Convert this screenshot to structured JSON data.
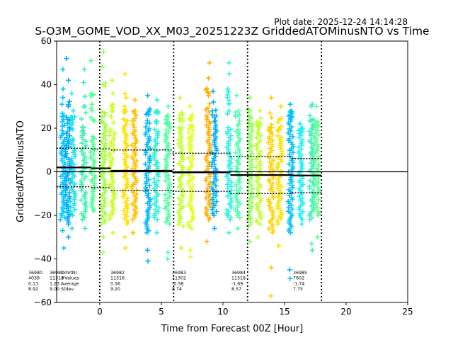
{
  "chart_data": {
    "type": "scatter",
    "plot_date": "Plot date: 2025-12-24 14:14:28",
    "title": "S-O3M_GOME_VOD_XX_M03_20251223Z GriddedATOMinusNTO vs Time",
    "xlabel": "Time from Forecast 00Z [Hour]",
    "ylabel": "GriddedATOMinusNTO",
    "xlim": [
      -3.5,
      25
    ],
    "ylim": [
      -60,
      60
    ],
    "xticks": [
      0,
      5,
      10,
      15,
      20,
      25
    ],
    "yticks": [
      -60,
      -40,
      -20,
      0,
      20,
      40,
      60
    ],
    "zero_line": 0,
    "forecast_boundaries": [
      0,
      6,
      12,
      18
    ],
    "orbit_stats_header": [
      "OrbitNr",
      "#Values",
      "Average",
      "Stdev"
    ],
    "orbits": [
      {
        "orbit": "36980",
        "values": "4039",
        "average": "0.13",
        "stdev": "8.92",
        "t_start": -3.5,
        "t_end": -0.7,
        "mean": 2.0,
        "upper": 10.8,
        "lower": -6.9
      },
      {
        "orbit": "36981",
        "values": "11311",
        "average": "1.23",
        "stdev": "9.00",
        "t_start": -0.7,
        "t_end": 0.9,
        "mean": 1.6,
        "upper": 10.5,
        "lower": -7.3
      },
      {
        "orbit": "36982",
        "values": "11316",
        "average": "0.56",
        "stdev": "9.20",
        "t_start": 0.9,
        "t_end": 5.9,
        "mean": 0.5,
        "upper": 10.0,
        "lower": -8.5
      },
      {
        "orbit": "36983",
        "values": "11302",
        "average": "-0.58",
        "stdev": "8.74",
        "t_start": 5.9,
        "t_end": 10.6,
        "mean": -0.3,
        "upper": 8.5,
        "lower": -9.0
      },
      {
        "orbit": "36984",
        "values": "11318",
        "average": "-1.69",
        "stdev": "8.57",
        "t_start": 10.6,
        "t_end": 15.6,
        "mean": -1.5,
        "upper": 7.0,
        "lower": -10.0
      },
      {
        "orbit": "36985",
        "values": "7602",
        "average": "-1.74",
        "stdev": "7.75",
        "t_start": 15.6,
        "t_end": 18.0,
        "mean": -1.7,
        "upper": 6.1,
        "lower": -9.6
      }
    ],
    "stripes": [
      {
        "x": -3.0,
        "ymin": -22,
        "ymax": 18,
        "outliers": [
          47,
          38,
          31,
          26,
          -27,
          -35
        ],
        "color": "#00c8ff"
      },
      {
        "x": -2.6,
        "ymin": -24,
        "ymax": 20,
        "outliers": [
          52,
          42,
          30,
          -30
        ],
        "color": "#00aaff"
      },
      {
        "x": -2.2,
        "ymin": -20,
        "ymax": 16,
        "outliers": [
          36,
          28,
          -26
        ],
        "color": "#20e0e8"
      },
      {
        "x": -1.3,
        "ymin": -22,
        "ymax": 19,
        "outliers": [
          47,
          41,
          30,
          -26
        ],
        "color": "#40f0b0"
      },
      {
        "x": -0.6,
        "ymin": -18,
        "ymax": 17,
        "outliers": [
          51,
          36,
          28
        ],
        "color": "#50ff90"
      },
      {
        "x": 0.3,
        "ymin": -24,
        "ymax": 22,
        "outliers": [
          55,
          48,
          40,
          -30,
          -37
        ],
        "color": "#a0ff40"
      },
      {
        "x": 1.0,
        "ymin": -22,
        "ymax": 19,
        "outliers": [
          42,
          36,
          28,
          -28
        ],
        "color": "#c8ff20"
      },
      {
        "x": 2.1,
        "ymin": -24,
        "ymax": 22,
        "outliers": [
          45,
          36,
          30,
          -30,
          -35
        ],
        "color": "#ffe000"
      },
      {
        "x": 2.8,
        "ymin": -22,
        "ymax": 20,
        "outliers": [
          33,
          28,
          -28
        ],
        "color": "#ffc000"
      },
      {
        "x": 3.9,
        "ymin": -28,
        "ymax": 21,
        "outliers": [
          35,
          28,
          -36,
          -41
        ],
        "color": "#00b8ff"
      },
      {
        "x": 4.6,
        "ymin": -22,
        "ymax": 20,
        "outliers": [
          33,
          28,
          -28
        ],
        "color": "#30f0d0"
      },
      {
        "x": 5.5,
        "ymin": -24,
        "ymax": 22,
        "outliers": [
          30,
          26,
          -37,
          -40
        ],
        "color": "#50ffa0"
      },
      {
        "x": 6.6,
        "ymin": -25,
        "ymax": 20,
        "outliers": [
          34,
          26,
          -35
        ],
        "color": "#c0ff30"
      },
      {
        "x": 7.4,
        "ymin": -26,
        "ymax": 21,
        "outliers": [
          30,
          25,
          -36,
          -39
        ],
        "color": "#e0ff20"
      },
      {
        "x": 8.8,
        "ymin": -22,
        "ymax": 26,
        "outliers": [
          50,
          43,
          35,
          -32
        ],
        "color": "#ffb000"
      },
      {
        "x": 9.3,
        "ymin": -20,
        "ymax": 22,
        "outliers": [
          37,
          32,
          -26
        ],
        "color": "#00b0ff"
      },
      {
        "x": 10.5,
        "ymin": -22,
        "ymax": 21,
        "outliers": [
          50,
          45,
          38,
          -28
        ],
        "color": "#30f0e0"
      },
      {
        "x": 11.2,
        "ymin": -21,
        "ymax": 20,
        "outliers": [
          35,
          28,
          -26
        ],
        "color": "#50ffb0"
      },
      {
        "x": 12.2,
        "ymin": -25,
        "ymax": 22,
        "outliers": [
          34,
          26,
          -32
        ],
        "color": "#90ff60"
      },
      {
        "x": 12.9,
        "ymin": -24,
        "ymax": 20,
        "outliers": [
          28,
          22,
          -30
        ],
        "color": "#c0ff30"
      },
      {
        "x": 13.9,
        "ymin": -28,
        "ymax": 18,
        "outliers": [
          34,
          27,
          -44,
          -57
        ],
        "color": "#ffd000"
      },
      {
        "x": 14.6,
        "ymin": -24,
        "ymax": 17,
        "outliers": [
          30,
          24,
          -34
        ],
        "color": "#ffe000"
      },
      {
        "x": 15.5,
        "ymin": -28,
        "ymax": 24,
        "outliers": [
          31,
          28,
          -45,
          -49
        ],
        "color": "#00c0ff"
      },
      {
        "x": 16.3,
        "ymin": -22,
        "ymax": 18,
        "outliers": [
          22,
          -24
        ],
        "color": "#20f0f0"
      },
      {
        "x": 17.2,
        "ymin": -22,
        "ymax": 20,
        "outliers": [
          31,
          30,
          -33,
          -36
        ],
        "color": "#40f0c0"
      },
      {
        "x": 17.6,
        "ymin": -20,
        "ymax": 18,
        "outliers": [
          30,
          -30
        ],
        "color": "#60ff90"
      }
    ]
  }
}
